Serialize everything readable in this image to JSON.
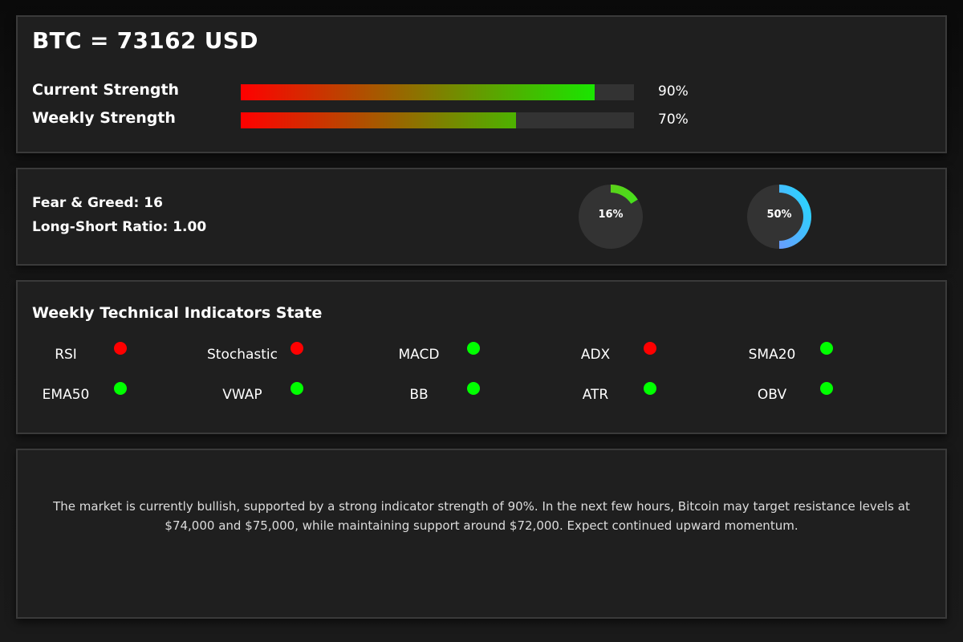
{
  "price": {
    "title": "BTC = 73162 USD"
  },
  "strength": [
    {
      "label": "Current Strength",
      "value": 90,
      "value_text": "90%"
    },
    {
      "label": "Weekly Strength",
      "value": 70,
      "value_text": "70%"
    }
  ],
  "sentiment": {
    "fear_greed_text": "Fear & Greed: 16",
    "long_short_text": "Long-Short Ratio: 1.00",
    "gauges": [
      {
        "value": 16,
        "label": "16%",
        "color_start": "#5dd01a",
        "color_end": "#43e21c"
      },
      {
        "value": 50,
        "label": "50%",
        "color_start": "#6a9bff",
        "color_end": "#1ee0ff"
      }
    ]
  },
  "indicators": {
    "title": "Weekly Technical Indicators State",
    "items": [
      {
        "name": "RSI",
        "state": "bearish"
      },
      {
        "name": "Stochastic",
        "state": "bearish"
      },
      {
        "name": "MACD",
        "state": "bullish"
      },
      {
        "name": "ADX",
        "state": "bearish"
      },
      {
        "name": "SMA20",
        "state": "bullish"
      },
      {
        "name": "EMA50",
        "state": "bullish"
      },
      {
        "name": "VWAP",
        "state": "bullish"
      },
      {
        "name": "BB",
        "state": "bullish"
      },
      {
        "name": "ATR",
        "state": "bullish"
      },
      {
        "name": "OBV",
        "state": "bullish"
      }
    ]
  },
  "summary": {
    "text": "The market is currently bullish, supported by a strong indicator strength of 90%. In the next few hours, Bitcoin may target resistance levels at $74,000 and $75,000, while maintaining support around $72,000. Expect continued upward momentum."
  },
  "colors": {
    "bullish": "#00ff00",
    "bearish": "#ff0000",
    "bar_start": "#ff0000",
    "bar_end": "#00ff00"
  }
}
